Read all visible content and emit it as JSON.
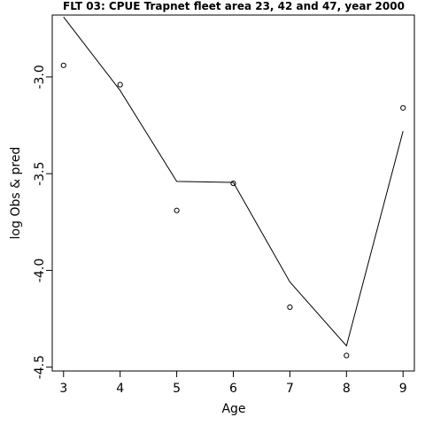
{
  "chart_data": {
    "type": "line",
    "title": "FLT 03: CPUE Trapnet fleet area 23, 42 and 47, year 2000",
    "xlabel": "Age",
    "ylabel": "log Obs & pred",
    "xlim": [
      2.8,
      9.2
    ],
    "ylim": [
      -4.52,
      -2.68
    ],
    "x_ticks": [
      3,
      4,
      5,
      6,
      7,
      8,
      9
    ],
    "x_tick_labels": [
      "3",
      "4",
      "5",
      "6",
      "7",
      "8",
      "9"
    ],
    "y_ticks": [
      -3.0,
      -3.5,
      -4.0,
      -4.5
    ],
    "y_tick_labels": [
      "-3.0",
      "-3.5",
      "-4.0",
      "-4.5"
    ],
    "grid": false,
    "legend": "none",
    "series": [
      {
        "kind": "points",
        "marker": "open-circle",
        "x": [
          3,
          4,
          5,
          6,
          7,
          8,
          9
        ],
        "y": [
          -2.94,
          -3.04,
          -3.69,
          -3.55,
          -4.19,
          -4.44,
          -3.16
        ]
      },
      {
        "kind": "line",
        "x": [
          3,
          4,
          5,
          6,
          7,
          8,
          9
        ],
        "y": [
          -2.69,
          -3.07,
          -3.54,
          -3.545,
          -4.06,
          -4.39,
          -3.28
        ]
      }
    ],
    "colors": {
      "line": "#000000",
      "points": "#000000",
      "box": "#000000"
    }
  }
}
